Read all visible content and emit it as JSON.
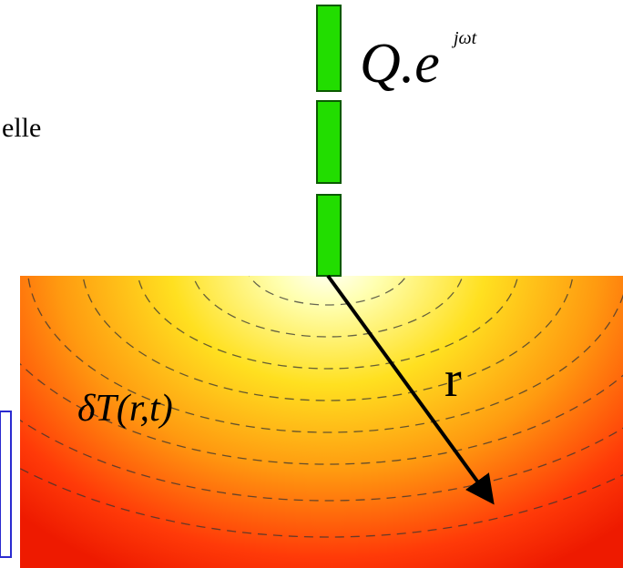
{
  "side_text": "elle",
  "source": {
    "label": "Q.e",
    "exponent": "jωt"
  },
  "field": {
    "label": "δT(r,t)"
  },
  "radius": {
    "label": "r"
  }
}
